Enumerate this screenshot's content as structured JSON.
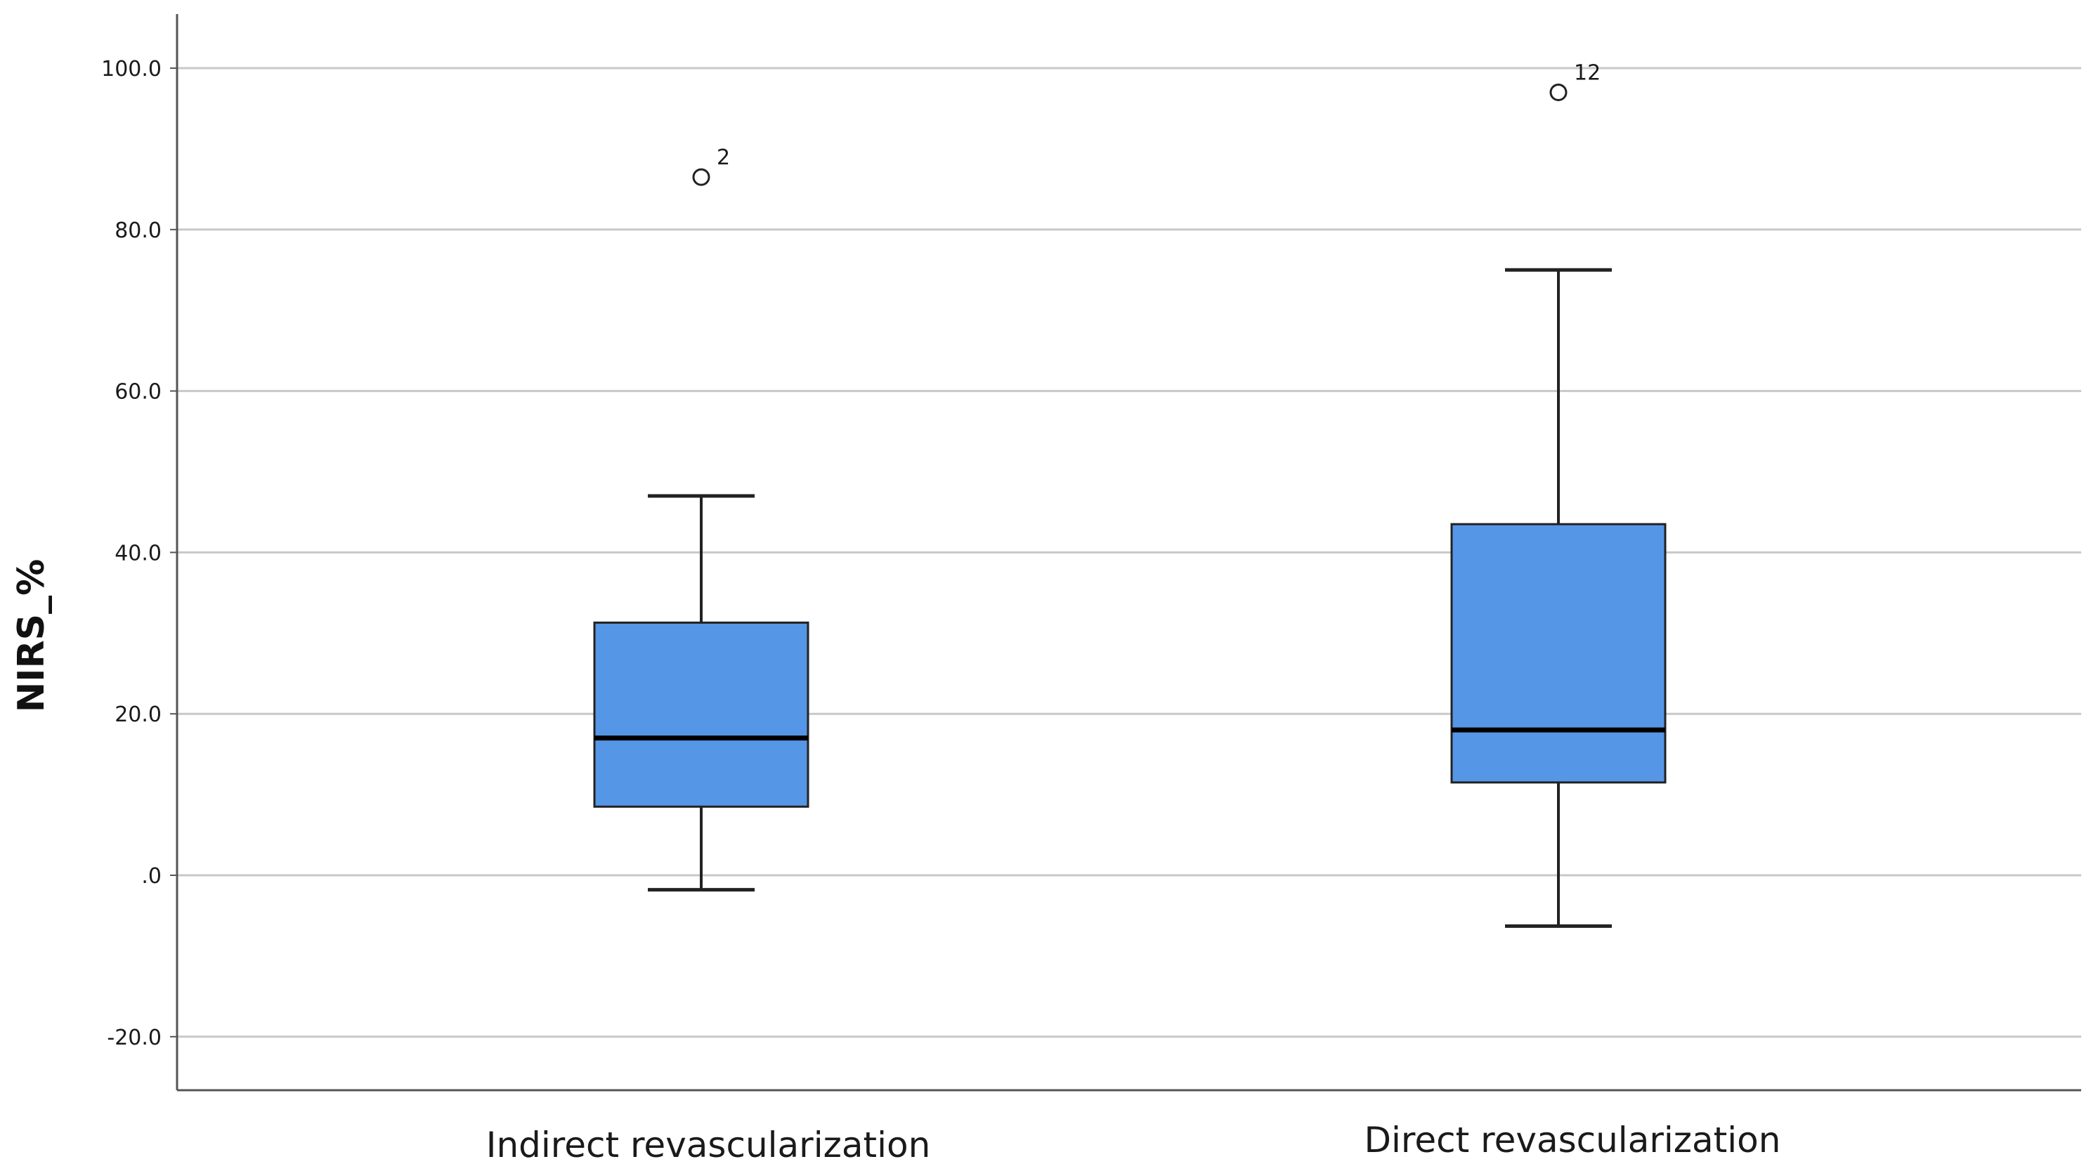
{
  "chart_data": {
    "type": "boxplot",
    "title": "",
    "xlabel": "",
    "ylabel": "NIRS_%",
    "ylim": [
      -26,
      106
    ],
    "yticks": [
      {
        "value": 100,
        "label": "100.0"
      },
      {
        "value": 80,
        "label": "80.0"
      },
      {
        "value": 60,
        "label": "60.0"
      },
      {
        "value": 40,
        "label": "40.0"
      },
      {
        "value": 20,
        "label": "20.0"
      },
      {
        "value": 0,
        "label": ".0"
      },
      {
        "value": -20,
        "label": "-20.0"
      }
    ],
    "grid": true,
    "categories": [
      "Indirect revascularization",
      "Direct revascularization"
    ],
    "boxes": [
      {
        "category": "Indirect revascularization",
        "whisker_low": -1.8,
        "q1": 8.5,
        "median": 17.0,
        "q3": 31.3,
        "whisker_high": 47.0,
        "outliers": [
          {
            "value": 86.5,
            "label": "2"
          }
        ]
      },
      {
        "category": "Direct revascularization",
        "whisker_low": -6.3,
        "q1": 11.5,
        "median": 18.0,
        "q3": 43.5,
        "whisker_high": 75.0,
        "outliers": [
          {
            "value": 97.0,
            "label": "12"
          }
        ]
      }
    ],
    "colors": {
      "box_fill": "#5596e6",
      "box_stroke": "#222222",
      "median": "#000000",
      "grid": "#c8c8c8",
      "axis": "#555555"
    }
  }
}
